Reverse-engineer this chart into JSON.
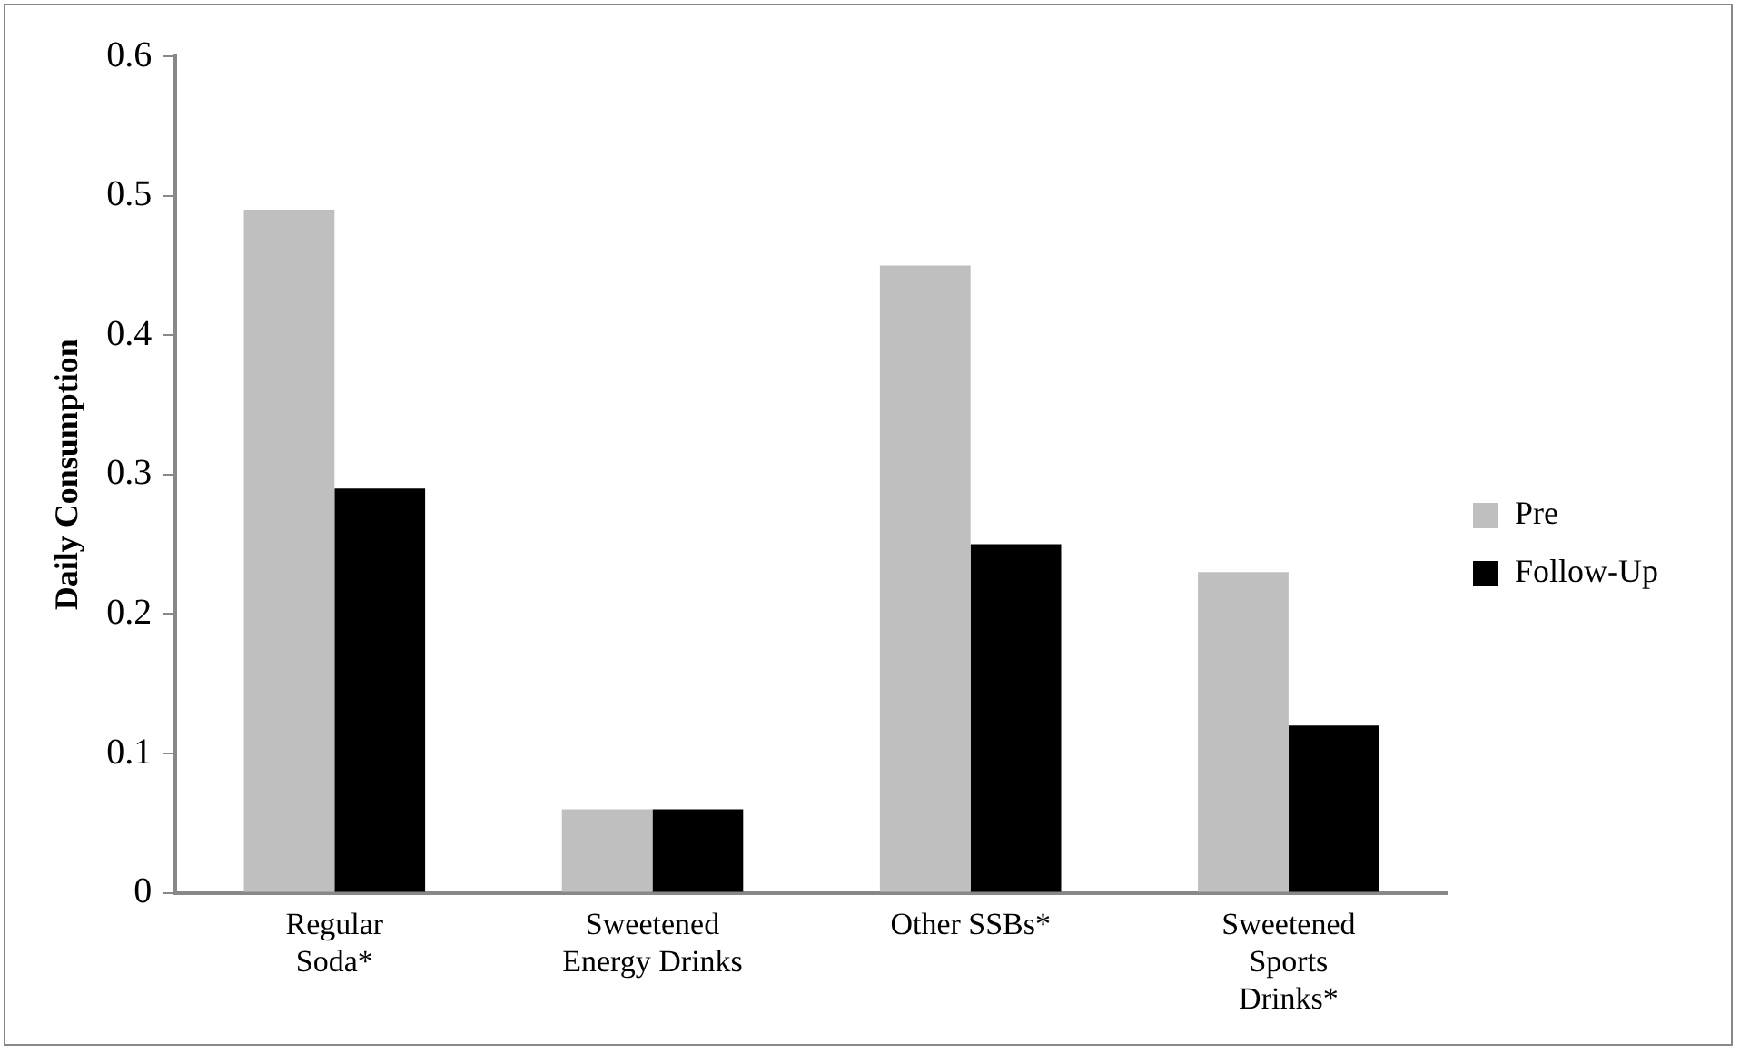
{
  "chart_data": {
    "type": "bar",
    "ylabel": "Daily Consumption",
    "categories": [
      "Regular Soda*",
      "Sweetened Energy Drinks",
      "Other SSBs*",
      "Sweetened Sports Drinks*"
    ],
    "series": [
      {
        "name": "Pre",
        "color": "#bfbfbf",
        "values": [
          0.49,
          0.06,
          0.45,
          0.23
        ]
      },
      {
        "name": "Follow-Up",
        "color": "#000000",
        "values": [
          0.29,
          0.06,
          0.25,
          0.12
        ]
      }
    ],
    "ylim": [
      0,
      0.6
    ],
    "yticks": [
      0,
      0.1,
      0.2,
      0.3,
      0.4,
      0.5,
      0.6
    ],
    "grid": false,
    "legend": "right"
  }
}
